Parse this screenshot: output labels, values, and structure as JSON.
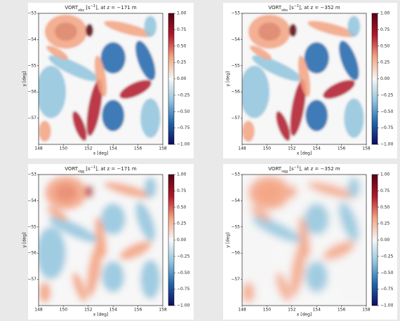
{
  "chart_data": [
    {
      "type": "heatmap",
      "title": [
        {
          "text": "VORT"
        },
        {
          "text": "obs",
          "style": "sub"
        },
        {
          "text": " [s"
        },
        {
          "text": "−1",
          "style": "sup"
        },
        {
          "text": "], at z = −171 m"
        }
      ],
      "x_label": "x [deg]",
      "y_label": "y [deg]",
      "xlim": [
        148,
        158
      ],
      "xticks": [
        148,
        150,
        152,
        154,
        156,
        158
      ],
      "ylim": [
        -58,
        -53
      ],
      "yticks": [
        {
          "value": -53,
          "label": "−53"
        },
        {
          "value": -54,
          "label": "−54"
        },
        {
          "value": -55,
          "label": "−55"
        },
        {
          "value": -56,
          "label": "−56"
        },
        {
          "value": -57,
          "label": "−57"
        }
      ],
      "clim": [
        -1,
        1
      ],
      "cticks": [
        {
          "value": 1,
          "label": "1.00"
        },
        {
          "value": 0.75,
          "label": "0.75"
        },
        {
          "value": 0.5,
          "label": "0.50"
        },
        {
          "value": 0.25,
          "label": "0.25"
        },
        {
          "value": 0,
          "label": "0.00"
        },
        {
          "value": -0.25,
          "label": "−0.25"
        },
        {
          "value": -0.5,
          "label": "−0.50"
        },
        {
          "value": -0.75,
          "label": "−0.75"
        },
        {
          "value": -1,
          "label": "−1.00"
        }
      ],
      "colormap": [
        "#0d0d5e",
        "#2166ac",
        "#92c5de",
        "#f7f7f7",
        "#f4a582",
        "#b2182b",
        "#5a0013"
      ]
    },
    {
      "type": "heatmap",
      "title": [
        {
          "text": "VORT"
        },
        {
          "text": "obs",
          "style": "sub"
        },
        {
          "text": " [s"
        },
        {
          "text": "−1",
          "style": "sup"
        },
        {
          "text": "], at z = −352 m"
        }
      ],
      "x_label": "x [deg]",
      "y_label": "y [deg]",
      "xlim": [
        148,
        158
      ],
      "xticks": [
        148,
        150,
        152,
        154,
        156,
        158
      ],
      "ylim": [
        -58,
        -53
      ],
      "yticks": [
        {
          "value": -53,
          "label": "−53"
        },
        {
          "value": -54,
          "label": "−54"
        },
        {
          "value": -55,
          "label": "−55"
        },
        {
          "value": -56,
          "label": "−56"
        },
        {
          "value": -57,
          "label": "−57"
        }
      ],
      "clim": [
        -1,
        1
      ],
      "cticks": [
        {
          "value": 1,
          "label": "1.00"
        },
        {
          "value": 0.75,
          "label": "0.75"
        },
        {
          "value": 0.5,
          "label": "0.50"
        },
        {
          "value": 0.25,
          "label": "0.25"
        },
        {
          "value": 0,
          "label": "0.00"
        },
        {
          "value": -0.25,
          "label": "−0.25"
        },
        {
          "value": -0.5,
          "label": "−0.50"
        },
        {
          "value": -0.75,
          "label": "−0.75"
        },
        {
          "value": -1,
          "label": "−1.00"
        }
      ],
      "colormap": [
        "#0d0d5e",
        "#2166ac",
        "#92c5de",
        "#f7f7f7",
        "#f4a582",
        "#b2182b",
        "#5a0013"
      ]
    },
    {
      "type": "heatmap",
      "title": [
        {
          "text": "VORT"
        },
        {
          "text": "sqg",
          "style": "sub"
        },
        {
          "text": " [s"
        },
        {
          "text": "−1",
          "style": "sup"
        },
        {
          "text": "], at z = −171 m"
        }
      ],
      "x_label": "x [deg]",
      "y_label": "y [deg]",
      "xlim": [
        148,
        158
      ],
      "xticks": [
        148,
        150,
        152,
        154,
        156,
        158
      ],
      "ylim": [
        -58,
        -53
      ],
      "yticks": [
        {
          "value": -53,
          "label": "−53"
        },
        {
          "value": -54,
          "label": "−54"
        },
        {
          "value": -55,
          "label": "−55"
        },
        {
          "value": -56,
          "label": "−56"
        },
        {
          "value": -57,
          "label": "−57"
        }
      ],
      "clim": [
        -1,
        1
      ],
      "cticks": [
        {
          "value": 1,
          "label": "1.00"
        },
        {
          "value": 0.75,
          "label": "0.75"
        },
        {
          "value": 0.5,
          "label": "0.50"
        },
        {
          "value": 0.25,
          "label": "0.25"
        },
        {
          "value": 0,
          "label": "0.00"
        },
        {
          "value": -0.25,
          "label": "−0.25"
        },
        {
          "value": -0.5,
          "label": "−0.50"
        },
        {
          "value": -0.75,
          "label": "−0.75"
        },
        {
          "value": -1,
          "label": "−1.00"
        }
      ],
      "colormap": [
        "#0d0d5e",
        "#2166ac",
        "#92c5de",
        "#f7f7f7",
        "#f4a582",
        "#b2182b",
        "#5a0013"
      ]
    },
    {
      "type": "heatmap",
      "title": [
        {
          "text": "VORT"
        },
        {
          "text": "sqg",
          "style": "sub"
        },
        {
          "text": " [s"
        },
        {
          "text": "−1",
          "style": "sup"
        },
        {
          "text": "], at z = −352 m"
        }
      ],
      "x_label": "x [deg]",
      "y_label": "y [deg]",
      "xlim": [
        148,
        158
      ],
      "xticks": [
        148,
        150,
        152,
        154,
        156,
        158
      ],
      "ylim": [
        -58,
        -53
      ],
      "yticks": [
        {
          "value": -53,
          "label": "−53"
        },
        {
          "value": -54,
          "label": "−54"
        },
        {
          "value": -55,
          "label": "−55"
        },
        {
          "value": -56,
          "label": "−56"
        },
        {
          "value": -57,
          "label": "−57"
        }
      ],
      "clim": [
        -1,
        1
      ],
      "cticks": [
        {
          "value": 1,
          "label": "1.00"
        },
        {
          "value": 0.75,
          "label": "0.75"
        },
        {
          "value": 0.5,
          "label": "0.50"
        },
        {
          "value": 0.25,
          "label": "0.25"
        },
        {
          "value": 0,
          "label": "0.00"
        },
        {
          "value": -0.25,
          "label": "−0.25"
        },
        {
          "value": -0.5,
          "label": "−0.50"
        },
        {
          "value": -0.75,
          "label": "−0.75"
        },
        {
          "value": -1,
          "label": "−1.00"
        }
      ],
      "colormap": [
        "#0d0d5e",
        "#2166ac",
        "#92c5de",
        "#f7f7f7",
        "#f4a582",
        "#b2182b",
        "#5a0013"
      ]
    }
  ]
}
